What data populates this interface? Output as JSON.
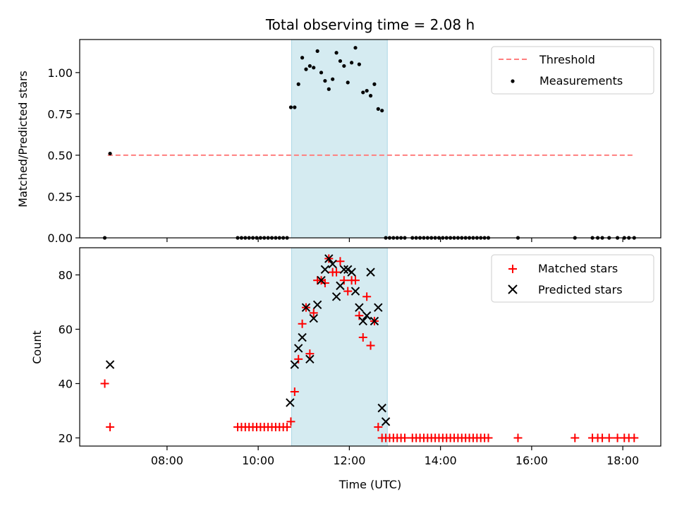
{
  "chart_data": [
    {
      "type": "scatter",
      "title": "Total observing time = 2.08 h",
      "xlabel": "",
      "ylabel": "Matched/Predicted stars",
      "ylim": [
        0,
        1.2
      ],
      "xlim": [
        "06:05",
        "18:50"
      ],
      "yticks": [
        0.0,
        0.25,
        0.5,
        0.75,
        1.0
      ],
      "ytick_labels": [
        "0.00",
        "0.25",
        "0.50",
        "0.75",
        "1.00"
      ],
      "shaded_region": {
        "start": "10:44",
        "end": "12:50",
        "color": "#d3eaf0"
      },
      "legend": {
        "placement": "upper-right"
      },
      "series": [
        {
          "name": "Threshold",
          "kind": "line",
          "style": "dashed",
          "color": "#ff7f7f",
          "x": [
            "06:42",
            "18:13"
          ],
          "y": [
            0.5,
            0.5
          ]
        },
        {
          "name": "Measurements",
          "kind": "scatter",
          "color": "#000000",
          "x": [
            "06:38",
            "06:45",
            "09:33",
            "09:38",
            "09:43",
            "09:48",
            "09:53",
            "09:58",
            "10:03",
            "10:08",
            "10:13",
            "10:18",
            "10:23",
            "10:28",
            "10:33",
            "10:38",
            "10:43",
            "10:48",
            "10:53",
            "10:58",
            "11:03",
            "11:08",
            "11:13",
            "11:18",
            "11:23",
            "11:28",
            "11:33",
            "11:38",
            "11:43",
            "11:48",
            "11:53",
            "11:58",
            "12:03",
            "12:08",
            "12:13",
            "12:18",
            "12:23",
            "12:28",
            "12:33",
            "12:38",
            "12:43",
            "12:48",
            "12:53",
            "12:58",
            "13:03",
            "13:08",
            "13:13",
            "13:23",
            "13:28",
            "13:33",
            "13:38",
            "13:43",
            "13:48",
            "13:53",
            "13:58",
            "14:03",
            "14:08",
            "14:13",
            "14:18",
            "14:23",
            "14:28",
            "14:33",
            "14:38",
            "14:43",
            "14:48",
            "14:53",
            "14:58",
            "15:03",
            "15:42",
            "16:57",
            "17:20",
            "17:27",
            "17:33",
            "17:42",
            "17:53",
            "18:02",
            "18:08",
            "18:15"
          ],
          "y": [
            0.0,
            0.51,
            0.0,
            0.0,
            0.0,
            0.0,
            0.0,
            0.0,
            0.0,
            0.0,
            0.0,
            0.0,
            0.0,
            0.0,
            0.0,
            0.0,
            0.79,
            0.79,
            0.93,
            1.09,
            1.02,
            1.04,
            1.03,
            1.13,
            1.0,
            0.95,
            0.9,
            0.96,
            1.12,
            1.07,
            1.04,
            0.94,
            1.06,
            1.15,
            1.05,
            0.88,
            0.89,
            0.86,
            0.93,
            0.78,
            0.77,
            0.0,
            0.0,
            0.0,
            0.0,
            0.0,
            0.0,
            0.0,
            0.0,
            0.0,
            0.0,
            0.0,
            0.0,
            0.0,
            0.0,
            0.0,
            0.0,
            0.0,
            0.0,
            0.0,
            0.0,
            0.0,
            0.0,
            0.0,
            0.0,
            0.0,
            0.0,
            0.0,
            0.0,
            0.0,
            0.0,
            0.0,
            0.0,
            0.0,
            0.0,
            0.0,
            0.0,
            0.0
          ]
        }
      ]
    },
    {
      "type": "scatter",
      "title": "",
      "xlabel": "Time (UTC)",
      "ylabel": "Count",
      "ylim": [
        17,
        90
      ],
      "xlim": [
        "06:05",
        "18:50"
      ],
      "xticks": [
        "08:00",
        "10:00",
        "12:00",
        "14:00",
        "16:00",
        "18:00"
      ],
      "yticks": [
        20,
        40,
        60,
        80
      ],
      "shaded_region": {
        "start": "10:44",
        "end": "12:50",
        "color": "#d3eaf0"
      },
      "legend": {
        "placement": "upper-right"
      },
      "series": [
        {
          "name": "Matched stars",
          "kind": "scatter",
          "marker": "plus",
          "color": "#ff0000",
          "x": [
            "06:38",
            "06:45",
            "09:33",
            "09:38",
            "09:43",
            "09:48",
            "09:53",
            "09:58",
            "10:03",
            "10:08",
            "10:13",
            "10:18",
            "10:23",
            "10:28",
            "10:33",
            "10:38",
            "10:43",
            "10:48",
            "10:53",
            "10:58",
            "11:03",
            "11:08",
            "11:13",
            "11:18",
            "11:23",
            "11:28",
            "11:33",
            "11:38",
            "11:43",
            "11:48",
            "11:53",
            "11:58",
            "12:03",
            "12:08",
            "12:13",
            "12:18",
            "12:23",
            "12:28",
            "12:33",
            "12:38",
            "12:43",
            "12:48",
            "12:53",
            "12:58",
            "13:03",
            "13:08",
            "13:13",
            "13:23",
            "13:28",
            "13:33",
            "13:38",
            "13:43",
            "13:48",
            "13:53",
            "13:58",
            "14:03",
            "14:08",
            "14:13",
            "14:18",
            "14:23",
            "14:28",
            "14:33",
            "14:38",
            "14:43",
            "14:48",
            "14:53",
            "14:58",
            "15:03",
            "15:42",
            "16:57",
            "17:20",
            "17:27",
            "17:33",
            "17:42",
            "17:53",
            "18:02",
            "18:08",
            "18:15"
          ],
          "y": [
            40,
            24,
            24,
            24,
            24,
            24,
            24,
            24,
            24,
            24,
            24,
            24,
            24,
            24,
            24,
            24,
            26,
            37,
            49,
            62,
            68,
            51,
            66,
            78,
            78,
            77,
            86,
            81,
            81,
            85,
            78,
            74,
            78,
            78,
            65,
            57,
            72,
            54,
            63,
            24,
            20,
            20,
            20,
            20,
            20,
            20,
            20,
            20,
            20,
            20,
            20,
            20,
            20,
            20,
            20,
            20,
            20,
            20,
            20,
            20,
            20,
            20,
            20,
            20,
            20,
            20,
            20,
            20,
            20,
            20,
            20,
            20,
            20,
            20,
            20,
            20,
            20,
            20
          ]
        },
        {
          "name": "Predicted stars",
          "kind": "scatter",
          "marker": "x",
          "color": "#000000",
          "x": [
            "06:45",
            "10:42",
            "10:48",
            "10:53",
            "10:58",
            "11:03",
            "11:08",
            "11:13",
            "11:18",
            "11:23",
            "11:28",
            "11:33",
            "11:38",
            "11:43",
            "11:48",
            "11:53",
            "11:58",
            "12:03",
            "12:08",
            "12:13",
            "12:18",
            "12:23",
            "12:28",
            "12:33",
            "12:38",
            "12:43",
            "12:48"
          ],
          "y": [
            47,
            33,
            47,
            53,
            57,
            68,
            49,
            64,
            69,
            78,
            82,
            86,
            84,
            72,
            76,
            82,
            82,
            81,
            74,
            68,
            63,
            65,
            81,
            63,
            68,
            31,
            26
          ]
        }
      ]
    }
  ]
}
